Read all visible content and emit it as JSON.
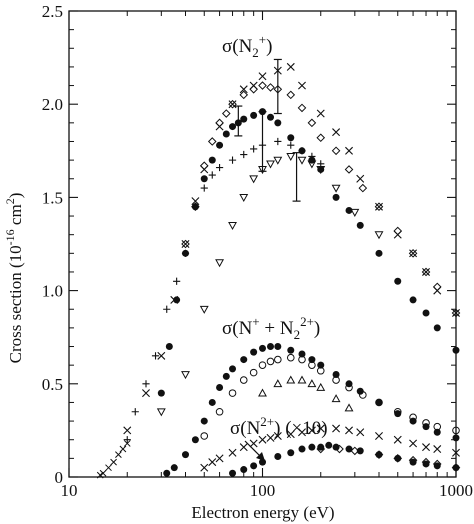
{
  "chart_data": {
    "type": "scatter",
    "xscale": "log",
    "xlim": [
      10,
      1000
    ],
    "ylim": [
      0,
      2.5
    ],
    "xlabel": "Electron energy (eV)",
    "ylabel_main": "Cross section (10",
    "ylabel_exp": "-16",
    "ylabel_unit": " cm",
    "ylabel_unit_exp": "2",
    "ylabel_close": ")",
    "x_ticks": [
      10,
      100,
      1000
    ],
    "x_tick_labels": [
      "10",
      "100",
      "1000"
    ],
    "y_ticks": [
      0,
      0.5,
      1.0,
      1.5,
      2.0,
      2.5
    ],
    "y_tick_labels": [
      "0",
      "0.5",
      "1.0",
      "1.5",
      "2.0",
      "2.5"
    ],
    "grid": false,
    "legend": "none",
    "annotations": [
      {
        "id": "n2p",
        "text": "σ(N2+)",
        "parts": [
          "σ(N",
          "2",
          "+",
          ")"
        ]
      },
      {
        "id": "np",
        "text": "σ(N+ + N22+)",
        "parts": [
          "σ(N",
          "+",
          " + N",
          "2",
          "2+",
          ")"
        ]
      },
      {
        "id": "n2pp",
        "text": "σ(N2+) (×10)",
        "parts": [
          "σ(N",
          "2+",
          ") (×10)"
        ]
      }
    ],
    "series": [
      {
        "group": "N2+",
        "marker": "filled-circle",
        "points": [
          [
            30,
            0.45
          ],
          [
            33,
            0.7
          ],
          [
            36,
            0.95
          ],
          [
            40,
            1.2
          ],
          [
            45,
            1.45
          ],
          [
            50,
            1.6
          ],
          [
            55,
            1.7
          ],
          [
            60,
            1.78
          ],
          [
            65,
            1.84
          ],
          [
            70,
            1.88
          ],
          [
            75,
            1.9
          ],
          [
            80,
            1.92
          ],
          [
            90,
            1.94
          ],
          [
            100,
            1.96
          ],
          [
            110,
            1.93
          ],
          [
            120,
            1.9
          ],
          [
            140,
            1.82
          ],
          [
            160,
            1.75
          ],
          [
            180,
            1.7
          ],
          [
            200,
            1.65
          ],
          [
            240,
            1.5
          ],
          [
            280,
            1.43
          ],
          [
            320,
            1.35
          ],
          [
            400,
            1.2
          ],
          [
            500,
            1.05
          ],
          [
            600,
            0.95
          ],
          [
            700,
            0.88
          ],
          [
            800,
            0.8
          ],
          [
            1000,
            0.68
          ]
        ]
      },
      {
        "group": "N2+",
        "marker": "open-diamond",
        "points": [
          [
            40,
            1.25
          ],
          [
            45,
            1.45
          ],
          [
            50,
            1.67
          ],
          [
            55,
            1.8
          ],
          [
            60,
            1.9
          ],
          [
            65,
            1.95
          ],
          [
            70,
            2.0
          ],
          [
            80,
            2.05
          ],
          [
            90,
            2.08
          ],
          [
            100,
            2.1
          ],
          [
            110,
            2.09
          ],
          [
            120,
            2.08
          ],
          [
            140,
            2.05
          ],
          [
            160,
            1.98
          ],
          [
            180,
            1.9
          ],
          [
            200,
            1.82
          ],
          [
            240,
            1.75
          ],
          [
            280,
            1.65
          ],
          [
            330,
            1.55
          ],
          [
            400,
            1.45
          ],
          [
            500,
            1.32
          ],
          [
            600,
            1.2
          ],
          [
            700,
            1.1
          ],
          [
            800,
            1.02
          ],
          [
            1000,
            0.88
          ]
        ]
      },
      {
        "group": "N2+",
        "marker": "cross",
        "points": [
          [
            20,
            0.25
          ],
          [
            25,
            0.45
          ],
          [
            30,
            0.65
          ],
          [
            35,
            0.95
          ],
          [
            40,
            1.25
          ],
          [
            45,
            1.48
          ],
          [
            50,
            1.65
          ],
          [
            60,
            1.88
          ],
          [
            70,
            2.0
          ],
          [
            80,
            2.08
          ],
          [
            90,
            2.1
          ],
          [
            100,
            2.15
          ],
          [
            120,
            2.18
          ],
          [
            140,
            2.2
          ],
          [
            160,
            2.1
          ],
          [
            200,
            1.95
          ],
          [
            240,
            1.85
          ],
          [
            280,
            1.75
          ],
          [
            320,
            1.6
          ],
          [
            400,
            1.45
          ],
          [
            500,
            1.3
          ],
          [
            600,
            1.2
          ],
          [
            700,
            1.1
          ],
          [
            800,
            1.0
          ],
          [
            1000,
            0.88
          ]
        ]
      },
      {
        "group": "N2+",
        "marker": "plus",
        "points": [
          [
            20,
            0.2
          ],
          [
            22,
            0.35
          ],
          [
            25,
            0.5
          ],
          [
            28,
            0.65
          ],
          [
            32,
            0.9
          ],
          [
            36,
            1.05
          ],
          [
            40,
            1.2
          ],
          [
            45,
            1.45
          ],
          [
            50,
            1.55
          ],
          [
            55,
            1.62
          ],
          [
            60,
            1.66
          ],
          [
            70,
            1.7
          ],
          [
            80,
            1.73
          ],
          [
            90,
            1.76
          ],
          [
            100,
            1.78
          ],
          [
            120,
            1.8
          ],
          [
            140,
            1.78
          ],
          [
            160,
            1.75
          ],
          [
            180,
            1.72
          ],
          [
            200,
            1.68
          ]
        ]
      },
      {
        "group": "N2+",
        "marker": "open-triangle-down",
        "points": [
          [
            30,
            0.35
          ],
          [
            40,
            0.55
          ],
          [
            50,
            0.9
          ],
          [
            60,
            1.15
          ],
          [
            70,
            1.35
          ],
          [
            80,
            1.5
          ],
          [
            90,
            1.6
          ],
          [
            100,
            1.65
          ],
          [
            110,
            1.68
          ],
          [
            120,
            1.7
          ],
          [
            140,
            1.72
          ],
          [
            160,
            1.7
          ],
          [
            180,
            1.68
          ],
          [
            200,
            1.65
          ],
          [
            240,
            1.55
          ],
          [
            300,
            1.42
          ],
          [
            400,
            1.3
          ]
        ]
      },
      {
        "group": "N2+",
        "marker": "small-cross-low",
        "points": [
          [
            14.5,
            0.01
          ],
          [
            15,
            0.02
          ],
          [
            16,
            0.05
          ],
          [
            17,
            0.08
          ],
          [
            18,
            0.12
          ],
          [
            19,
            0.15
          ],
          [
            20,
            0.18
          ]
        ]
      },
      {
        "group": "N+ + N22+",
        "marker": "filled-circle",
        "points": [
          [
            32,
            0.02
          ],
          [
            35,
            0.05
          ],
          [
            40,
            0.12
          ],
          [
            45,
            0.2
          ],
          [
            50,
            0.3
          ],
          [
            55,
            0.4
          ],
          [
            60,
            0.48
          ],
          [
            65,
            0.54
          ],
          [
            70,
            0.58
          ],
          [
            80,
            0.63
          ],
          [
            90,
            0.67
          ],
          [
            100,
            0.69
          ],
          [
            110,
            0.7
          ],
          [
            120,
            0.7
          ],
          [
            140,
            0.68
          ],
          [
            160,
            0.66
          ],
          [
            180,
            0.63
          ],
          [
            200,
            0.6
          ],
          [
            240,
            0.55
          ],
          [
            280,
            0.5
          ],
          [
            320,
            0.46
          ],
          [
            400,
            0.4
          ],
          [
            500,
            0.34
          ],
          [
            600,
            0.3
          ],
          [
            700,
            0.27
          ],
          [
            800,
            0.24
          ],
          [
            1000,
            0.21
          ]
        ]
      },
      {
        "group": "N+ + N22+",
        "marker": "open-circle",
        "points": [
          [
            50,
            0.22
          ],
          [
            60,
            0.35
          ],
          [
            70,
            0.45
          ],
          [
            80,
            0.52
          ],
          [
            90,
            0.56
          ],
          [
            100,
            0.6
          ],
          [
            110,
            0.62
          ],
          [
            120,
            0.63
          ],
          [
            140,
            0.64
          ],
          [
            160,
            0.63
          ],
          [
            180,
            0.6
          ],
          [
            200,
            0.57
          ],
          [
            240,
            0.52
          ],
          [
            280,
            0.48
          ],
          [
            330,
            0.44
          ],
          [
            400,
            0.4
          ],
          [
            500,
            0.35
          ],
          [
            600,
            0.32
          ],
          [
            700,
            0.29
          ],
          [
            800,
            0.27
          ],
          [
            1000,
            0.25
          ]
        ]
      },
      {
        "group": "N+ + N22+",
        "marker": "open-triangle-up",
        "points": [
          [
            100,
            0.45
          ],
          [
            120,
            0.5
          ],
          [
            140,
            0.52
          ],
          [
            160,
            0.52
          ],
          [
            180,
            0.5
          ],
          [
            200,
            0.48
          ],
          [
            240,
            0.42
          ],
          [
            280,
            0.37
          ]
        ]
      },
      {
        "group": "N2+ (x10)",
        "marker": "cross",
        "points": [
          [
            50,
            0.05
          ],
          [
            55,
            0.08
          ],
          [
            60,
            0.1
          ],
          [
            70,
            0.13
          ],
          [
            80,
            0.16
          ],
          [
            90,
            0.18
          ],
          [
            100,
            0.2
          ],
          [
            110,
            0.21
          ],
          [
            120,
            0.22
          ],
          [
            140,
            0.23
          ],
          [
            160,
            0.24
          ],
          [
            180,
            0.25
          ],
          [
            200,
            0.26
          ],
          [
            240,
            0.26
          ],
          [
            280,
            0.25
          ],
          [
            320,
            0.24
          ],
          [
            400,
            0.22
          ],
          [
            500,
            0.2
          ],
          [
            600,
            0.18
          ],
          [
            700,
            0.16
          ],
          [
            800,
            0.15
          ],
          [
            1000,
            0.13
          ]
        ]
      },
      {
        "group": "N2+ (x10)",
        "marker": "filled-circle",
        "points": [
          [
            70,
            0.02
          ],
          [
            80,
            0.04
          ],
          [
            90,
            0.06
          ],
          [
            100,
            0.08
          ],
          [
            120,
            0.11
          ],
          [
            140,
            0.13
          ],
          [
            160,
            0.15
          ],
          [
            180,
            0.16
          ],
          [
            200,
            0.16
          ],
          [
            220,
            0.17
          ],
          [
            240,
            0.16
          ],
          [
            280,
            0.15
          ],
          [
            320,
            0.14
          ],
          [
            400,
            0.12
          ],
          [
            500,
            0.1
          ],
          [
            600,
            0.08
          ],
          [
            700,
            0.07
          ],
          [
            800,
            0.06
          ],
          [
            1000,
            0.05
          ]
        ]
      },
      {
        "group": "N2+ (x10)",
        "marker": "open-diamond",
        "points": [
          [
            200,
            0.15
          ],
          [
            250,
            0.15
          ],
          [
            300,
            0.14
          ],
          [
            400,
            0.12
          ],
          [
            500,
            0.1
          ],
          [
            600,
            0.09
          ],
          [
            700,
            0.08
          ],
          [
            800,
            0.07
          ],
          [
            1000,
            0.05
          ]
        ]
      }
    ],
    "error_bars": [
      {
        "x": 75,
        "y": 1.91,
        "low": 1.83,
        "high": 1.99
      },
      {
        "x": 100,
        "y": 1.8,
        "low": 1.64,
        "high": 1.96
      },
      {
        "x": 120,
        "y": 2.1,
        "low": 1.95,
        "high": 2.24
      },
      {
        "x": 150,
        "y": 1.6,
        "low": 1.48,
        "high": 1.74
      }
    ]
  }
}
